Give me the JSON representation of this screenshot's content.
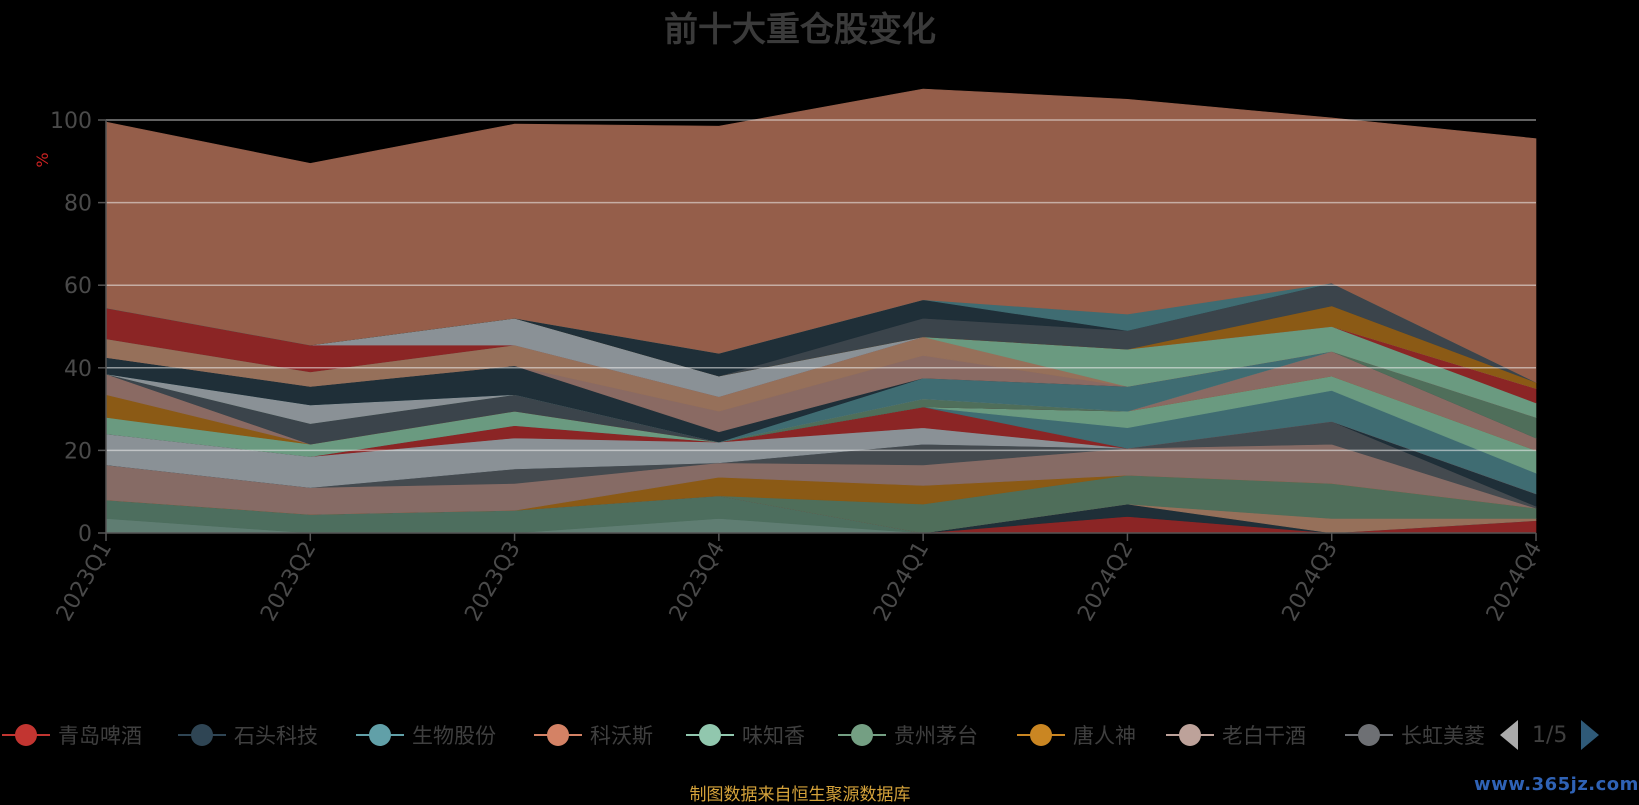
{
  "chart_data": {
    "type": "area",
    "stacked": true,
    "title": "前十大重仓股变化",
    "ylabel": "%",
    "ylim": [
      0,
      100
    ],
    "yticks": [
      0,
      20,
      40,
      60,
      80,
      100
    ],
    "categories": [
      "2023Q1",
      "2023Q2",
      "2023Q3",
      "2023Q4",
      "2024Q1",
      "2024Q2",
      "2024Q3",
      "2024Q4"
    ],
    "series": [
      {
        "color": "#5f7d72",
        "values": [
          3.5,
          0,
          0,
          3.5,
          0,
          0,
          0,
          0
        ]
      },
      {
        "color": "#4d6e5e",
        "values": [
          4.5,
          4.5,
          5.5,
          5.5,
          0,
          0,
          0,
          0
        ]
      },
      {
        "color": "#8b2525",
        "values": [
          0,
          0,
          0,
          0,
          0,
          4,
          0,
          3
        ]
      },
      {
        "color": "#1f2f38",
        "values": [
          0,
          0,
          0,
          0,
          0,
          3,
          0,
          0
        ]
      },
      {
        "color": "#96705a",
        "values": [
          0,
          0,
          0,
          0,
          0,
          0,
          3.5,
          0.5
        ]
      },
      {
        "color": "#4f6e5a",
        "values": [
          0,
          0,
          0,
          0,
          7,
          7,
          8.5,
          2.5
        ]
      },
      {
        "color": "#8b5a15",
        "values": [
          0,
          0,
          0,
          4.5,
          4.5,
          0,
          0,
          0
        ]
      },
      {
        "color": "#866b65",
        "values": [
          8.5,
          6.5,
          6.5,
          3.5,
          5,
          6.5,
          9.5,
          0
        ]
      },
      {
        "color": "#444a4f",
        "values": [
          0,
          0,
          3.5,
          0,
          5,
          0,
          5.5,
          0.5
        ]
      },
      {
        "color": "#1f2f38",
        "values": [
          0,
          0,
          0,
          0,
          0,
          0,
          0,
          3
        ]
      },
      {
        "color": "#8a9196",
        "values": [
          7.5,
          7.5,
          7.5,
          5,
          4,
          0,
          0,
          0
        ]
      },
      {
        "color": "#8b2525",
        "values": [
          0,
          0,
          3,
          0,
          5,
          0,
          0,
          0
        ]
      },
      {
        "color": "#3f6c72",
        "values": [
          0,
          0,
          0,
          0,
          0,
          5,
          7.5,
          5
        ]
      },
      {
        "color": "#6a9a80",
        "values": [
          4,
          3,
          3.5,
          0,
          0,
          4,
          3.5,
          5.5
        ]
      },
      {
        "color": "#8b5a15",
        "values": [
          5.5,
          0,
          0,
          0,
          0,
          0,
          0,
          0
        ]
      },
      {
        "color": "#8a6a63",
        "values": [
          5,
          0,
          0,
          0,
          0,
          0,
          6,
          3
        ]
      },
      {
        "color": "#3b444b",
        "values": [
          0,
          5,
          4,
          0,
          0,
          0,
          0,
          0
        ]
      },
      {
        "color": "#4f6e5a",
        "values": [
          0,
          0,
          0,
          0,
          2,
          0,
          0,
          5
        ]
      },
      {
        "color": "#8a9196",
        "values": [
          0,
          4.5,
          0,
          0,
          0,
          0,
          0,
          0
        ]
      },
      {
        "color": "#3f6c72",
        "values": [
          0,
          0,
          0,
          0,
          5,
          6,
          0,
          0
        ]
      },
      {
        "color": "#1f2f38",
        "values": [
          4,
          4.5,
          7,
          2.5,
          0,
          0,
          0,
          0
        ]
      },
      {
        "color": "#8a6a63",
        "values": [
          0,
          0,
          0,
          5,
          5.5,
          0,
          0,
          0
        ]
      },
      {
        "color": "#96705a",
        "values": [
          4.5,
          3.5,
          5,
          3.5,
          4.5,
          0,
          0,
          0
        ]
      },
      {
        "color": "#6a9a80",
        "values": [
          0,
          0,
          0,
          0,
          0,
          9,
          6,
          3.5
        ]
      },
      {
        "color": "#8b2525",
        "values": [
          7.5,
          6.5,
          0,
          0,
          0,
          0,
          0,
          3.5
        ]
      },
      {
        "color": "#8a9196",
        "values": [
          0,
          0,
          6.5,
          5,
          0,
          0,
          0,
          0
        ]
      },
      {
        "color": "#8b5a15",
        "values": [
          0,
          0,
          0,
          0,
          0,
          0,
          5,
          1.5
        ]
      },
      {
        "color": "#3b444b",
        "values": [
          0,
          0,
          0,
          0,
          4.5,
          4.5,
          5.5,
          0
        ]
      },
      {
        "color": "#1f2f38",
        "values": [
          0,
          0,
          0,
          5.5,
          4.5,
          0,
          0,
          0
        ]
      },
      {
        "color": "#3f6c72",
        "values": [
          0,
          0,
          0,
          0,
          0,
          4,
          0,
          0
        ]
      },
      {
        "color": "#955e4a",
        "values": [
          45,
          44,
          47,
          55,
          51,
          52,
          40,
          59
        ]
      }
    ],
    "legend": {
      "position": "bottom",
      "page": "1/5",
      "items": [
        {
          "name": "青岛啤酒",
          "color": "#c23531"
        },
        {
          "name": "石头科技",
          "color": "#2f4554"
        },
        {
          "name": "生物股份",
          "color": "#61a0a8"
        },
        {
          "name": "科沃斯",
          "color": "#d48265"
        },
        {
          "name": "味知香",
          "color": "#91c7ae"
        },
        {
          "name": "贵州茅台",
          "color": "#749f83"
        },
        {
          "name": "唐人神",
          "color": "#ca8622"
        },
        {
          "name": "老白干酒",
          "color": "#bda29a"
        },
        {
          "name": "长虹美菱",
          "color": "#6e7074"
        }
      ]
    },
    "source": "制图数据来自恒生聚源数据库"
  },
  "watermark": "www.365jz.com",
  "colors": {
    "axis": "#555555",
    "ylabel": "#cc2222",
    "gridline": "#eeeeee"
  }
}
